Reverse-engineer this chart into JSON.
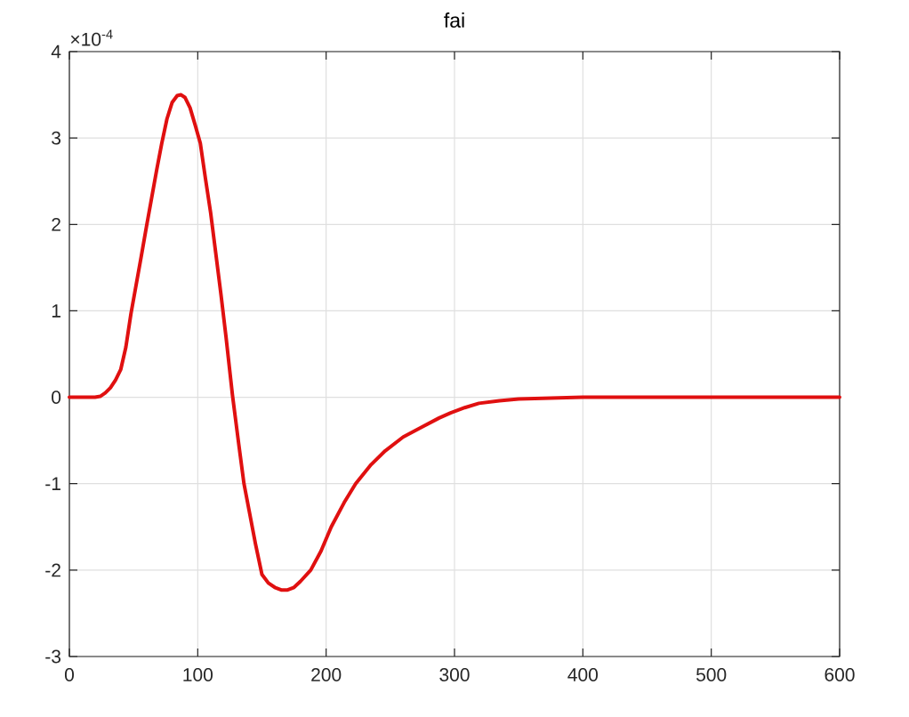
{
  "chart_data": {
    "type": "line",
    "title": "fai",
    "annotations": [
      "×10$^{-4}$"
    ],
    "x": [
      0,
      10,
      20,
      24,
      28,
      32,
      36,
      40,
      44,
      48,
      52,
      56,
      60,
      64,
      68,
      72,
      76,
      80,
      84,
      87,
      90,
      94,
      98,
      102,
      106,
      110,
      114,
      118,
      122,
      127,
      132,
      136,
      140,
      145,
      150,
      155,
      160,
      165,
      170,
      175,
      180,
      188,
      196,
      204,
      214,
      223,
      235,
      246,
      260,
      274,
      288,
      297,
      308,
      319,
      335,
      350,
      375,
      400,
      450,
      500,
      550,
      600
    ],
    "series": [
      {
        "color": "#e01010",
        "values": [
          0,
          0,
          0,
          0.01,
          0.05,
          0.11,
          0.2,
          0.32,
          0.58,
          0.97,
          1.3,
          1.63,
          1.97,
          2.3,
          2.63,
          2.94,
          3.22,
          3.41,
          3.49,
          3.5,
          3.47,
          3.35,
          3.15,
          2.94,
          2.53,
          2.14,
          1.67,
          1.2,
          0.7,
          0.03,
          -0.55,
          -1.0,
          -1.31,
          -1.7,
          -2.05,
          -2.15,
          -2.2,
          -2.23,
          -2.23,
          -2.2,
          -2.13,
          -2.0,
          -1.78,
          -1.5,
          -1.22,
          -1.0,
          -0.78,
          -0.62,
          -0.46,
          -0.35,
          -0.24,
          -0.18,
          -0.12,
          -0.07,
          -0.04,
          -0.02,
          -0.01,
          0,
          0,
          0,
          0,
          0
        ]
      }
    ],
    "xlim": [
      0,
      600
    ],
    "ylim": [
      -3,
      4
    ],
    "xticks": [
      0,
      100,
      200,
      300,
      400,
      500,
      600
    ],
    "yticks": [
      -3,
      -2,
      -1,
      0,
      1,
      2,
      3,
      4
    ],
    "grid": true,
    "line_style": "solid"
  }
}
